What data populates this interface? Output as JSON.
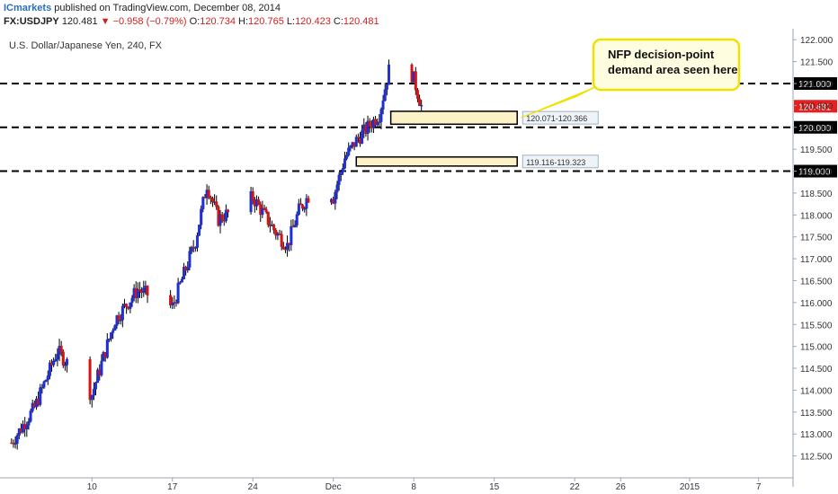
{
  "header": {
    "brand": "ICmarkets",
    "published": " published on TradingView.com, December 08, 2014",
    "symbol": "FX:USDJPY",
    "last": "120.481",
    "change": "▼ −0.958 (−0.79%)",
    "o_label": "O:",
    "o_value": "120.734",
    "h_label": "H:",
    "h_value": "120.765",
    "l_label": "L:",
    "l_value": "120.423",
    "c_label": "C:",
    "c_value": "120.481"
  },
  "colors": {
    "up": "#1f2fd6",
    "down": "#d41414",
    "current_price_bg": "#e81f1f",
    "zone_fill": "#fdf1c7",
    "callout_fill": "#fffde0",
    "callout_border": "#f0e000"
  },
  "chart_data": {
    "type": "candlestick",
    "title": "U.S. Dollar/Japanese Yen, 240, FX",
    "ylim": [
      112.0,
      122.25
    ],
    "y_ticks": [
      "112.500",
      "113.000",
      "113.500",
      "114.000",
      "114.500",
      "115.000",
      "115.500",
      "116.000",
      "116.500",
      "117.000",
      "117.500",
      "118.000",
      "118.500",
      "119.000",
      "119.500",
      "120.000",
      "120.500",
      "121.000",
      "121.500",
      "122.000"
    ],
    "x_ticks": [
      {
        "label": "10",
        "date": "2014-11-10"
      },
      {
        "label": "17",
        "date": "2014-11-17"
      },
      {
        "label": "24",
        "date": "2014-11-24"
      },
      {
        "label": "Dec",
        "date": "2014-12-01"
      },
      {
        "label": "8",
        "date": "2014-12-08"
      },
      {
        "label": "15",
        "date": "2014-12-15"
      },
      {
        "label": "22",
        "date": "2014-12-22"
      },
      {
        "label": "26",
        "date": "2014-12-26"
      },
      {
        "label": "2015",
        "date": "2015-01-01"
      },
      {
        "label": "7",
        "date": "2015-01-07"
      }
    ],
    "xlim": [
      "2014-11-02",
      "2015-01-10"
    ],
    "series_keypoints": [
      [
        "2014-11-03",
        112.8
      ],
      [
        "2014-11-05",
        113.6
      ],
      [
        "2014-11-07",
        114.9
      ],
      [
        "2014-11-10",
        113.9
      ],
      [
        "2014-11-12",
        115.6
      ],
      [
        "2014-11-14",
        116.3
      ],
      [
        "2014-11-17",
        115.9
      ],
      [
        "2014-11-19",
        117.4
      ],
      [
        "2014-11-20",
        118.7
      ],
      [
        "2014-11-21",
        117.9
      ],
      [
        "2014-11-24",
        118.4
      ],
      [
        "2014-11-26",
        117.6
      ],
      [
        "2014-11-27",
        117.3
      ],
      [
        "2014-11-28",
        118.1
      ],
      [
        "2014-11-30",
        118.9
      ],
      [
        "2014-12-01",
        118.4
      ],
      [
        "2014-12-02",
        119.3
      ],
      [
        "2014-12-03",
        119.7
      ],
      [
        "2014-12-05",
        120.3
      ],
      [
        "2014-12-06",
        121.5
      ],
      [
        "2014-12-07",
        121.7
      ],
      [
        "2014-12-08",
        121.1
      ],
      [
        "2014-12-08T16",
        120.48
      ]
    ],
    "horizontal_levels": [
      {
        "value": 121.0,
        "label": "121.000"
      },
      {
        "value": 120.0,
        "label": "120.000"
      },
      {
        "value": 119.0,
        "label": "119.000"
      }
    ],
    "zones": [
      {
        "from": "2014-12-06",
        "to": "2014-12-17",
        "low": 120.071,
        "high": 120.366,
        "label": "120.071-120.366"
      },
      {
        "from": "2014-12-03",
        "to": "2014-12-17",
        "low": 119.116,
        "high": 119.323,
        "label": "119.116-119.323"
      }
    ],
    "current_price": {
      "value": 120.481,
      "label": "120.481"
    },
    "annotation": {
      "text": [
        "NFP decision-point",
        "demand area seen here"
      ]
    }
  }
}
